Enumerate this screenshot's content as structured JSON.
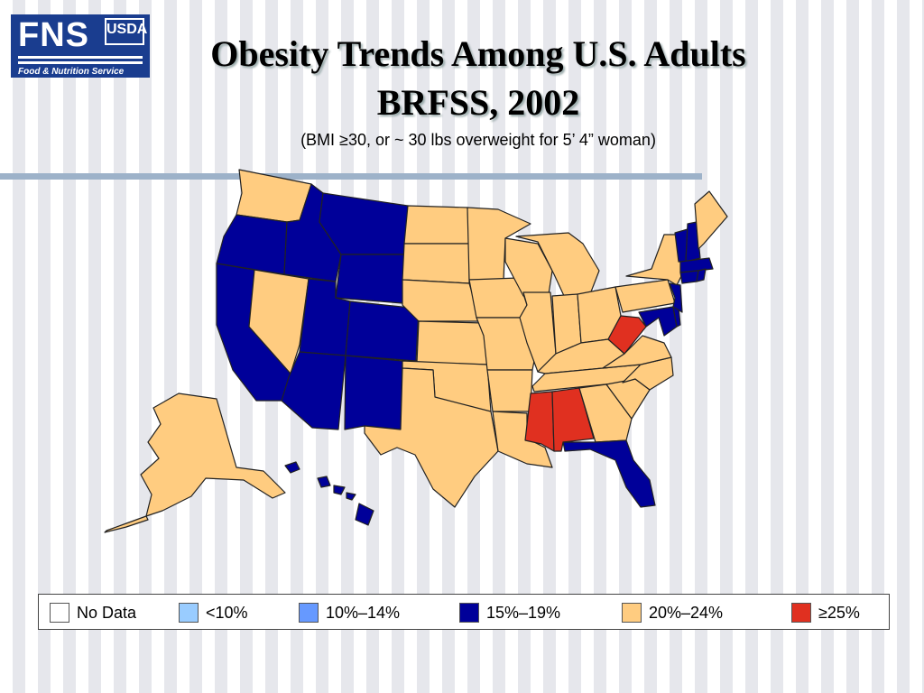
{
  "logo": {
    "fns": "FNS",
    "usda": "USDA",
    "subtitle": "Food & Nutrition Service"
  },
  "title": {
    "line1": "Obesity Trends Among U.S. Adults",
    "line2": "BRFSS, 2002"
  },
  "subtitle": "(BMI ≥30, or ~ 30 lbs overweight for 5’ 4” woman)",
  "colors": {
    "no_data": "#ffffff",
    "lt10": "#99ccff",
    "10_14": "#6699ff",
    "15_19": "#000099",
    "20_24": "#ffcc80",
    "ge25": "#e03020",
    "border": "#222222"
  },
  "legend": [
    {
      "label": "No Data",
      "color": "#ffffff"
    },
    {
      "label": "<10%",
      "color": "#99ccff"
    },
    {
      "label": "10%–14%",
      "color": "#6699ff"
    },
    {
      "label": "15%–19%",
      "color": "#000099"
    },
    {
      "label": "20%–24%",
      "color": "#ffcc80"
    },
    {
      "label": "≥25%",
      "color": "#e03020"
    }
  ]
}
